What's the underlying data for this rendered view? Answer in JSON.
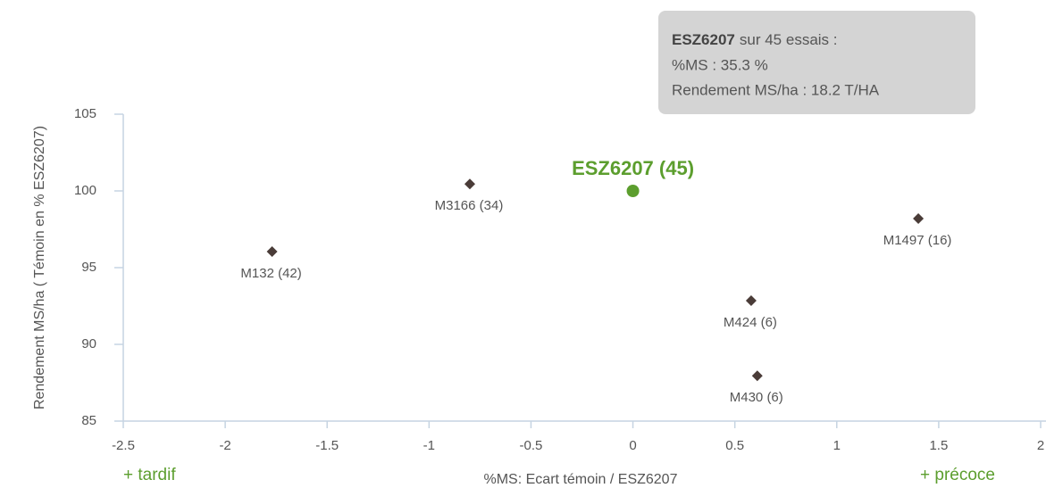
{
  "chart_data": {
    "type": "scatter",
    "x_label": "%MS: Ecart témoin / ESZ6207",
    "y_label": "Rendement MS/ha ( Témoin en % ESZ6207)",
    "xlim": [
      -2.5,
      2
    ],
    "ylim": [
      85,
      105
    ],
    "xticks": [
      -2.5,
      -2,
      -1.5,
      -1,
      -0.5,
      0,
      0.5,
      1,
      1.5,
      2
    ],
    "yticks": [
      85,
      90,
      95,
      100,
      105
    ],
    "grid": false,
    "color": "#4a3c38",
    "points": [
      {
        "label": "M132 (42)",
        "x": -1.77,
        "y": 96.05
      },
      {
        "label": "M3166 (34)",
        "x": -0.8,
        "y": 100.45
      },
      {
        "label": "M1497 (16)",
        "x": 1.4,
        "y": 98.2
      },
      {
        "label": "M424 (6)",
        "x": 0.58,
        "y": 92.85
      },
      {
        "label": "M430 (6)",
        "x": 0.61,
        "y": 87.95
      }
    ],
    "reference": {
      "label": "ESZ6207 (45)",
      "x": 0,
      "y": 100,
      "color": "#5c9e2e"
    },
    "annotations": {
      "left": "+ tardif",
      "right": "+ précoce"
    },
    "tooltip": {
      "bold": "ESZ6207",
      "first_line": "sur 45 essais :",
      "lines": [
        "%MS : 35.3 %",
        "Rendement MS/ha : 18.2 T/HA"
      ]
    }
  }
}
